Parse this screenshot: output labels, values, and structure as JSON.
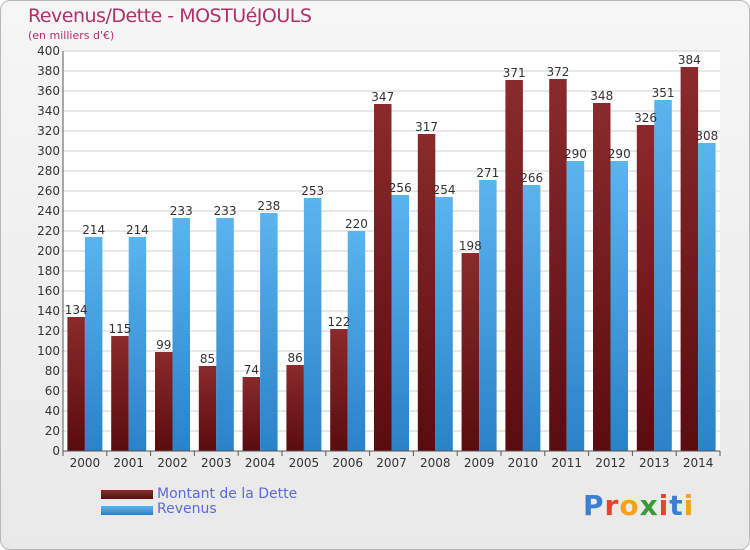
{
  "header": {
    "title": "Revenus/Dette - MOSTUéJOULS",
    "subtitle": "(en milliers d'€)"
  },
  "logo": {
    "text": "Proxiti"
  },
  "chart_data": {
    "type": "bar",
    "categories": [
      "2000",
      "2001",
      "2002",
      "2003",
      "2004",
      "2005",
      "2006",
      "2007",
      "2008",
      "2009",
      "2010",
      "2011",
      "2012",
      "2013",
      "2014"
    ],
    "series": [
      {
        "name": "Montant de la Dette",
        "color": "#7a1f22",
        "values": [
          134,
          115,
          99,
          85,
          74,
          86,
          122,
          347,
          317,
          198,
          371,
          372,
          348,
          326,
          384
        ]
      },
      {
        "name": "Revenus",
        "color": "#3d9de0",
        "values": [
          214,
          214,
          233,
          233,
          238,
          253,
          220,
          256,
          254,
          271,
          266,
          290,
          290,
          351,
          308
        ]
      }
    ],
    "ylim": [
      0,
      400
    ],
    "yticks": [
      0,
      20,
      40,
      60,
      80,
      100,
      120,
      140,
      160,
      180,
      200,
      220,
      240,
      260,
      280,
      300,
      320,
      340,
      360,
      380,
      400
    ],
    "grid": true,
    "legend": "bottom-left"
  }
}
